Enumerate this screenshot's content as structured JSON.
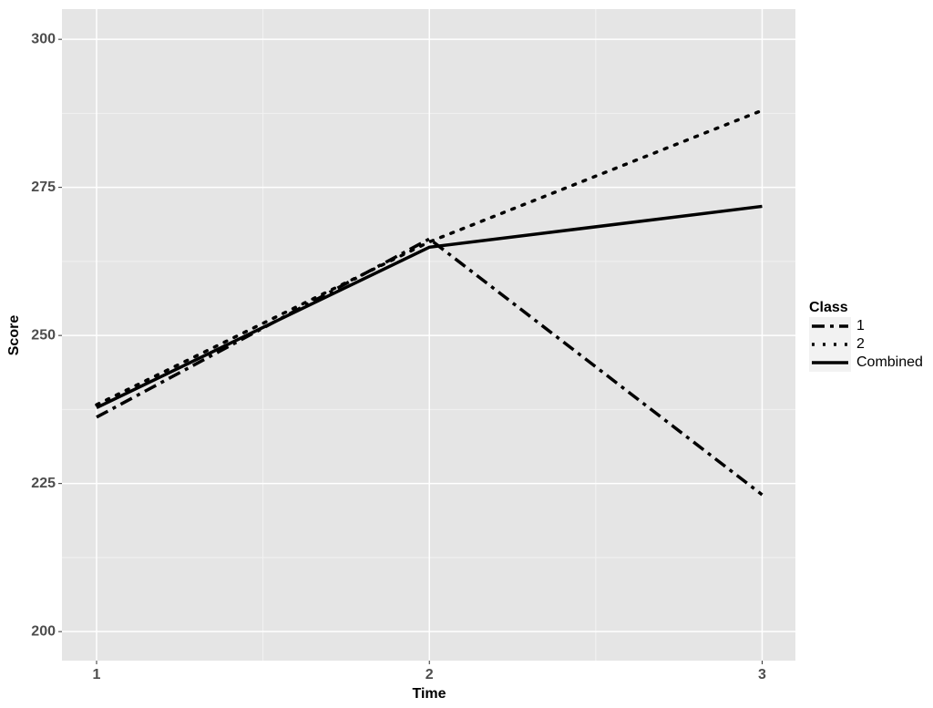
{
  "chart_data": {
    "type": "line",
    "x_label": "Time",
    "y_label": "Score",
    "x": [
      1,
      2,
      3
    ],
    "xlim": [
      0.896,
      3.1
    ],
    "xticks": [
      1,
      2,
      3
    ],
    "xminor": [
      1.5,
      2.5
    ],
    "ylim": [
      195.1,
      305.1
    ],
    "yticks": [
      200,
      225,
      250,
      275,
      300
    ],
    "yminor": [
      212.5,
      237.5,
      262.5,
      287.5
    ],
    "grid": true,
    "legend_title": "Class",
    "legend_position": "right",
    "series": [
      {
        "name": "1",
        "color": "#000000",
        "dash": "dashdot",
        "values": [
          236.2,
          266.3,
          223.1
        ]
      },
      {
        "name": "2",
        "color": "#000000",
        "dash": "dotted",
        "values": [
          238.3,
          265.8,
          288.0
        ]
      },
      {
        "name": "Combined",
        "color": "#000000",
        "dash": "solid",
        "values": [
          237.8,
          264.9,
          271.8
        ]
      }
    ]
  }
}
